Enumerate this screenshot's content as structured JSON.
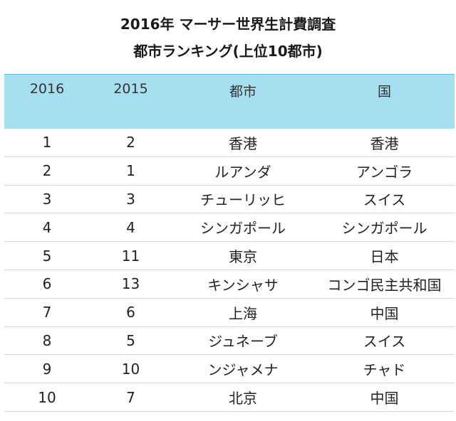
{
  "title_line1": "2016年 マーサー世界生計費調査",
  "title_line2": "都市ランキング(上位10都市)",
  "headers": [
    "2016",
    "2015",
    "都市",
    "国"
  ],
  "rows": [
    [
      "1",
      "2",
      "香港",
      "香港"
    ],
    [
      "2",
      "1",
      "ルアンダ",
      "アンゴラ"
    ],
    [
      "3",
      "3",
      "チューリッヒ",
      "スイス"
    ],
    [
      "4",
      "4",
      "シンガポール",
      "シンガポール"
    ],
    [
      "5",
      "11",
      "東京",
      "日本"
    ],
    [
      "6",
      "13",
      "キンシャサ",
      "コンゴ民主共和国"
    ],
    [
      "7",
      "6",
      "上海",
      "中国"
    ],
    [
      "8",
      "5",
      "ジュネーブ",
      "スイス"
    ],
    [
      "9",
      "10",
      "ンジャメナ",
      "チャド"
    ],
    [
      "10",
      "7",
      "北京",
      "中国"
    ]
  ]
}
